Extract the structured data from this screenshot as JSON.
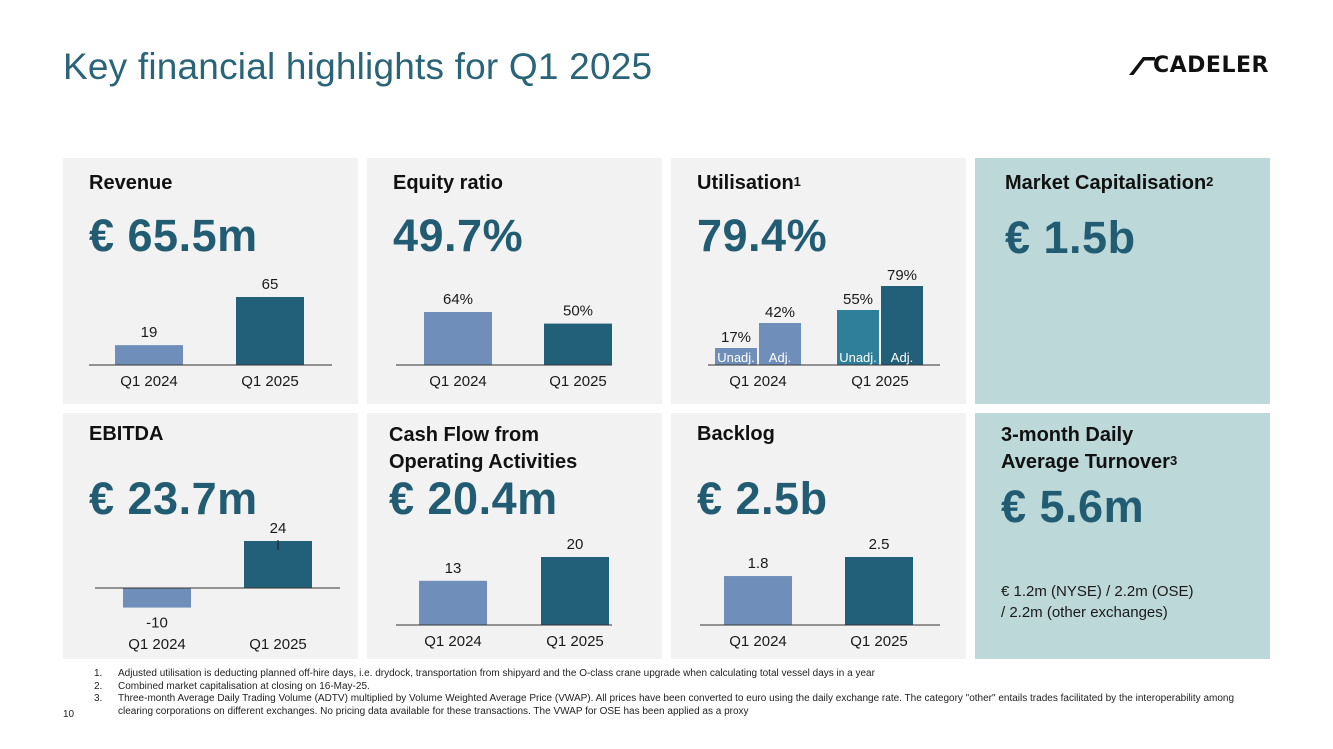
{
  "title": "Key financial highlights for Q1 2025",
  "logo": {
    "text": "CADELER"
  },
  "colors": {
    "title": "#2a6478",
    "value": "#225c73",
    "bar_light": "#6f8fba",
    "bar_mid": "#2f7f9a",
    "bar_dark": "#225f78",
    "card_gray": "#f2f2f2",
    "card_teal": "#bcd8d9"
  },
  "cards": {
    "revenue": {
      "label": "Revenue",
      "value": "€ 65.5m"
    },
    "equity": {
      "label": "Equity ratio",
      "value": "49.7%"
    },
    "utilisation": {
      "label": "Utilisation",
      "sup": "1",
      "value": "79.4%"
    },
    "market_cap": {
      "label": "Market Capitalisation",
      "sup": "2",
      "value": "€ 1.5b"
    },
    "ebitda": {
      "label": "EBITDA",
      "value": "€ 23.7m"
    },
    "cashflow": {
      "label_line1": "Cash Flow from",
      "label_line2": "Operating Activities",
      "value": "€ 20.4m"
    },
    "backlog": {
      "label": "Backlog",
      "value": "€ 2.5b"
    },
    "turnover": {
      "label_line1": "3-month Daily",
      "label_line2": "Average Turnover",
      "sup": "3",
      "value": "€ 5.6m",
      "note_line1": "€ 1.2m (NYSE) / 2.2m (OSE)",
      "note_line2": "/ 2.2m (other exchanges)"
    }
  },
  "chart_data": [
    {
      "id": "revenue",
      "type": "bar",
      "categories": [
        "Q1 2024",
        "Q1 2025"
      ],
      "values": [
        19,
        65
      ],
      "labels": [
        "19",
        "65"
      ],
      "ylim": [
        0,
        65
      ]
    },
    {
      "id": "equity",
      "type": "bar",
      "categories": [
        "Q1 2024",
        "Q1 2025"
      ],
      "values": [
        64,
        50
      ],
      "labels": [
        "64%",
        "50%"
      ],
      "ylim": [
        0,
        100
      ]
    },
    {
      "id": "utilisation",
      "type": "bar",
      "categories": [
        "Q1 2024",
        "Q1 2025"
      ],
      "series": [
        {
          "name": "Unadj.",
          "values": [
            17,
            55
          ],
          "labels": [
            "17%",
            "55%"
          ]
        },
        {
          "name": "Adj.",
          "values": [
            42,
            79
          ],
          "labels": [
            "42%",
            "79%"
          ]
        }
      ],
      "ylim": [
        0,
        100
      ]
    },
    {
      "id": "ebitda",
      "type": "bar",
      "categories": [
        "Q1 2024",
        "Q1 2025"
      ],
      "values": [
        -10,
        24
      ],
      "labels": [
        "-10",
        "24"
      ],
      "ylim": [
        -10,
        24
      ]
    },
    {
      "id": "cashflow",
      "type": "bar",
      "categories": [
        "Q1 2024",
        "Q1 2025"
      ],
      "values": [
        13,
        20
      ],
      "labels": [
        "13",
        "20"
      ],
      "ylim": [
        0,
        20
      ]
    },
    {
      "id": "backlog",
      "type": "bar",
      "categories": [
        "Q1 2024",
        "Q1 2025"
      ],
      "values": [
        1.8,
        2.5
      ],
      "labels": [
        "1.8",
        "2.5"
      ],
      "ylim": [
        0,
        2.5
      ]
    }
  ],
  "footnotes": [
    {
      "num": "1.",
      "text": "Adjusted utilisation is deducting planned off-hire days, i.e. drydock, transportation from shipyard and the O-class crane upgrade when calculating total vessel days in a year"
    },
    {
      "num": "2.",
      "text": "Combined market capitalisation at closing on 16-May-25."
    },
    {
      "num": "3.",
      "text": "Three-month Average Daily Trading Volume (ADTV) multiplied by Volume Weighted Average Price (VWAP). All prices have been converted to euro using the daily exchange rate. The category \"other\" entails trades facilitated by the interoperability among clearing corporations on different exchanges. No pricing data available for these transactions. The VWAP for OSE has been applied as a proxy"
    }
  ],
  "page_number": "10"
}
